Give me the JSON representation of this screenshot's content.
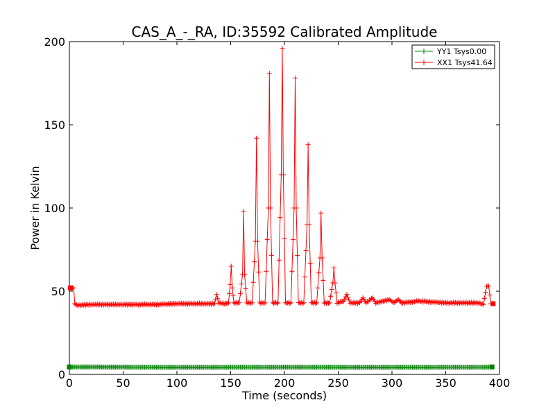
{
  "chart_data": {
    "type": "line",
    "title": "CAS_A_-_RA, ID:35592 Calibrated Amplitude",
    "xlabel": "Time (seconds)",
    "ylabel": "Power in Kelvin",
    "xlim": [
      0,
      400
    ],
    "ylim": [
      0,
      200
    ],
    "xticks": [
      "0",
      "50",
      "100",
      "150",
      "200",
      "250",
      "300",
      "350",
      "400"
    ],
    "yticks": [
      "0",
      "50",
      "100",
      "150",
      "200"
    ],
    "legend_position": "top-right",
    "series": [
      {
        "name": "YY1 Tsys0.00",
        "color": "#008000",
        "marker": "+",
        "points": [
          [
            0,
            4.5
          ],
          [
            8,
            4.5
          ],
          [
            100,
            4.3
          ],
          [
            200,
            4.4
          ],
          [
            300,
            4.3
          ],
          [
            389,
            4.4
          ],
          [
            393,
            4.5
          ]
        ]
      },
      {
        "name": "XX1 Tsys41.64",
        "color": "#ff0000",
        "marker": "+",
        "points": [
          [
            1,
            52
          ],
          [
            4,
            52
          ],
          [
            5,
            42.5
          ],
          [
            7,
            41.5
          ],
          [
            20,
            42
          ],
          [
            40,
            42
          ],
          [
            60,
            42
          ],
          [
            80,
            42
          ],
          [
            100,
            42.5
          ],
          [
            120,
            42.5
          ],
          [
            130,
            42.5
          ],
          [
            135,
            42.5
          ],
          [
            137,
            48
          ],
          [
            139,
            43
          ],
          [
            144,
            42.5
          ],
          [
            148,
            43
          ],
          [
            149.5,
            54
          ],
          [
            150.5,
            65
          ],
          [
            151.5,
            52
          ],
          [
            153,
            43
          ],
          [
            158,
            43
          ],
          [
            161,
            60
          ],
          [
            162,
            98
          ],
          [
            163,
            60
          ],
          [
            165,
            43
          ],
          [
            170,
            43
          ],
          [
            173,
            80
          ],
          [
            174,
            142
          ],
          [
            175,
            80
          ],
          [
            177,
            43
          ],
          [
            182,
            43
          ],
          [
            185,
            100
          ],
          [
            186,
            181
          ],
          [
            187,
            100
          ],
          [
            189,
            43
          ],
          [
            194,
            43
          ],
          [
            197,
            120
          ],
          [
            198,
            196
          ],
          [
            199,
            120
          ],
          [
            201,
            43
          ],
          [
            206,
            43
          ],
          [
            209,
            100
          ],
          [
            210,
            178
          ],
          [
            211,
            100
          ],
          [
            213,
            43
          ],
          [
            218,
            43
          ],
          [
            221,
            90
          ],
          [
            222,
            138
          ],
          [
            223,
            90
          ],
          [
            225,
            43
          ],
          [
            230,
            43
          ],
          [
            233,
            70
          ],
          [
            234,
            97
          ],
          [
            235,
            70
          ],
          [
            237,
            43
          ],
          [
            242,
            43
          ],
          [
            245,
            55
          ],
          [
            246,
            64
          ],
          [
            247,
            55
          ],
          [
            249,
            43
          ],
          [
            255,
            44
          ],
          [
            258,
            48
          ],
          [
            261,
            43
          ],
          [
            270,
            43
          ],
          [
            273,
            46
          ],
          [
            276,
            43
          ],
          [
            282,
            46
          ],
          [
            285,
            43
          ],
          [
            298,
            45
          ],
          [
            301,
            43
          ],
          [
            306,
            45
          ],
          [
            309,
            43
          ],
          [
            325,
            44
          ],
          [
            350,
            43
          ],
          [
            370,
            43
          ],
          [
            380,
            43
          ],
          [
            385,
            42
          ],
          [
            388,
            53
          ],
          [
            390,
            53
          ],
          [
            392,
            42.5
          ],
          [
            394,
            42.5
          ]
        ]
      }
    ]
  }
}
